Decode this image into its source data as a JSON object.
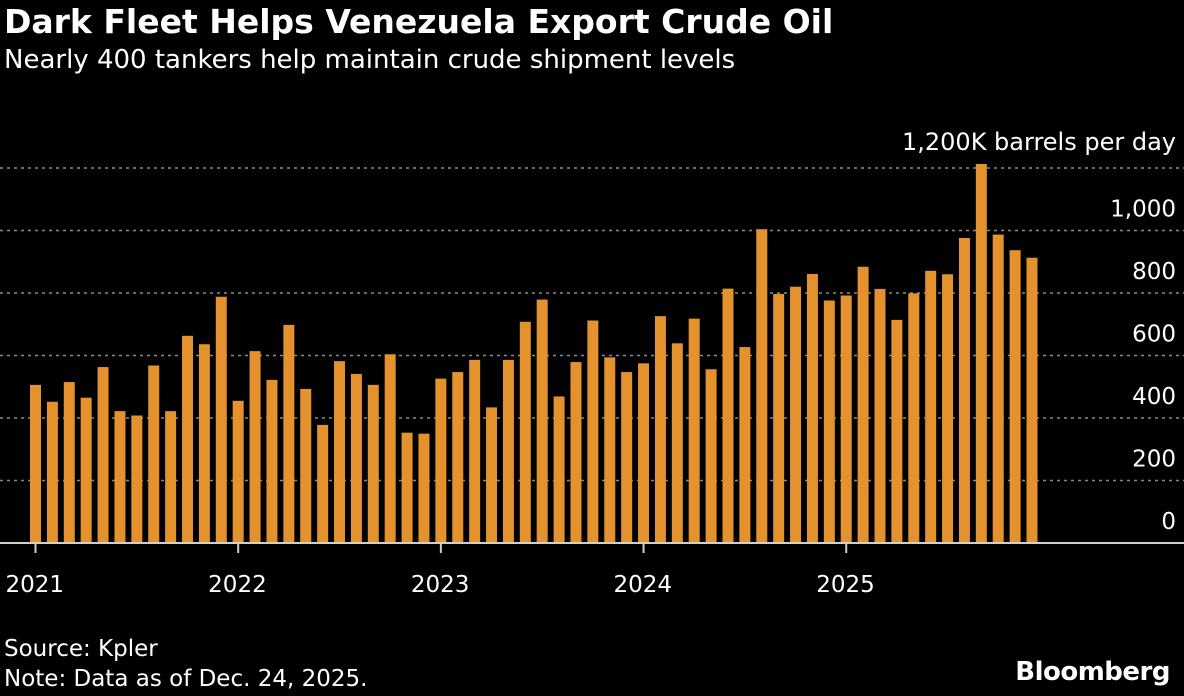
{
  "chart_data": {
    "type": "bar",
    "title": "Dark Fleet Helps Venezuela Export Crude Oil",
    "subtitle": "Nearly 400 tankers help maintain crude shipment levels",
    "unit_label": "1,200K barrels per day",
    "xlabel": "",
    "ylabel": "",
    "ylim": [
      0,
      1200
    ],
    "yticks": [
      0,
      200,
      400,
      600,
      800,
      1000
    ],
    "ytick_labels": [
      "0",
      "200",
      "400",
      "600",
      "800",
      "1,000"
    ],
    "grid": true,
    "year_labels": [
      "2021",
      "2022",
      "2023",
      "2024",
      "2025"
    ],
    "categories": [
      "2021-01",
      "2021-02",
      "2021-03",
      "2021-04",
      "2021-05",
      "2021-06",
      "2021-07",
      "2021-08",
      "2021-09",
      "2021-10",
      "2021-11",
      "2021-12",
      "2022-01",
      "2022-02",
      "2022-03",
      "2022-04",
      "2022-05",
      "2022-06",
      "2022-07",
      "2022-08",
      "2022-09",
      "2022-10",
      "2022-11",
      "2022-12",
      "2023-01",
      "2023-02",
      "2023-03",
      "2023-04",
      "2023-05",
      "2023-06",
      "2023-07",
      "2023-08",
      "2023-09",
      "2023-10",
      "2023-11",
      "2023-12",
      "2024-01",
      "2024-02",
      "2024-03",
      "2024-04",
      "2024-05",
      "2024-06",
      "2024-07",
      "2024-08",
      "2024-09",
      "2024-10",
      "2024-11",
      "2024-12",
      "2025-01",
      "2025-02",
      "2025-03",
      "2025-04",
      "2025-05",
      "2025-06",
      "2025-07",
      "2025-08",
      "2025-09",
      "2025-10",
      "2025-11",
      "2025-12"
    ],
    "values": [
      506,
      452,
      515,
      465,
      563,
      422,
      408,
      568,
      422,
      663,
      636,
      788,
      455,
      614,
      522,
      698,
      493,
      378,
      582,
      541,
      506,
      604,
      353,
      350,
      526,
      547,
      586,
      434,
      586,
      708,
      779,
      469,
      579,
      712,
      594,
      547,
      575,
      726,
      639,
      718,
      556,
      814,
      627,
      1004,
      797,
      820,
      861,
      776,
      792,
      884,
      813,
      714,
      799,
      871,
      860,
      976,
      1213,
      987,
      937,
      913
    ],
    "bar_color": "#E3922E",
    "gridline_color": "#8a8a8a",
    "axis_color": "#cfcfcf"
  },
  "footer": {
    "source": "Source: Kpler",
    "note": "Note: Data as of Dec. 24, 2025.",
    "brand": "Bloomberg"
  }
}
